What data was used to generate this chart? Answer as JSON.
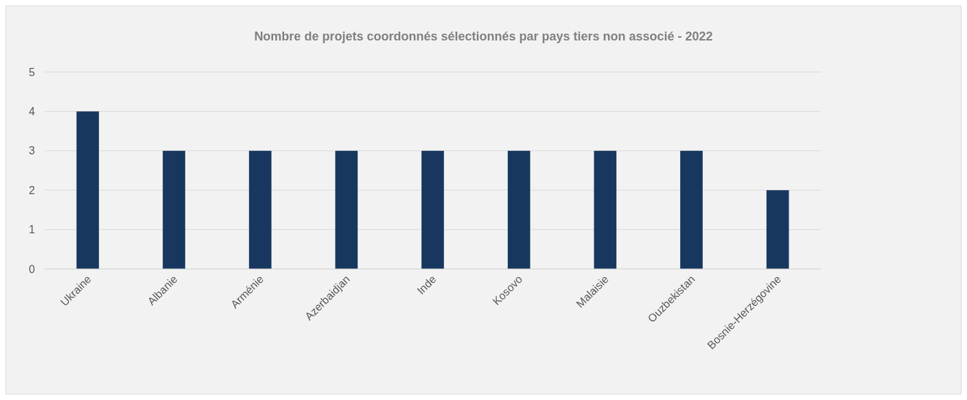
{
  "chart_data": {
    "type": "bar",
    "title": "Nombre de projets coordonnés sélectionnés par pays tiers non associé - 2022",
    "categories": [
      "Ukraine",
      "Albanie",
      "Arménie",
      "Azerbaidjan",
      "Inde",
      "Kosovo",
      "Malaisie",
      "Ouzbekistan",
      "Bosnie-Herzégovine"
    ],
    "values": [
      4,
      3,
      3,
      3,
      3,
      3,
      3,
      3,
      2
    ],
    "color": "#17375e",
    "ylim": [
      0,
      5
    ],
    "yticks": [
      0,
      1,
      2,
      3,
      4,
      5
    ],
    "grid": "y"
  }
}
